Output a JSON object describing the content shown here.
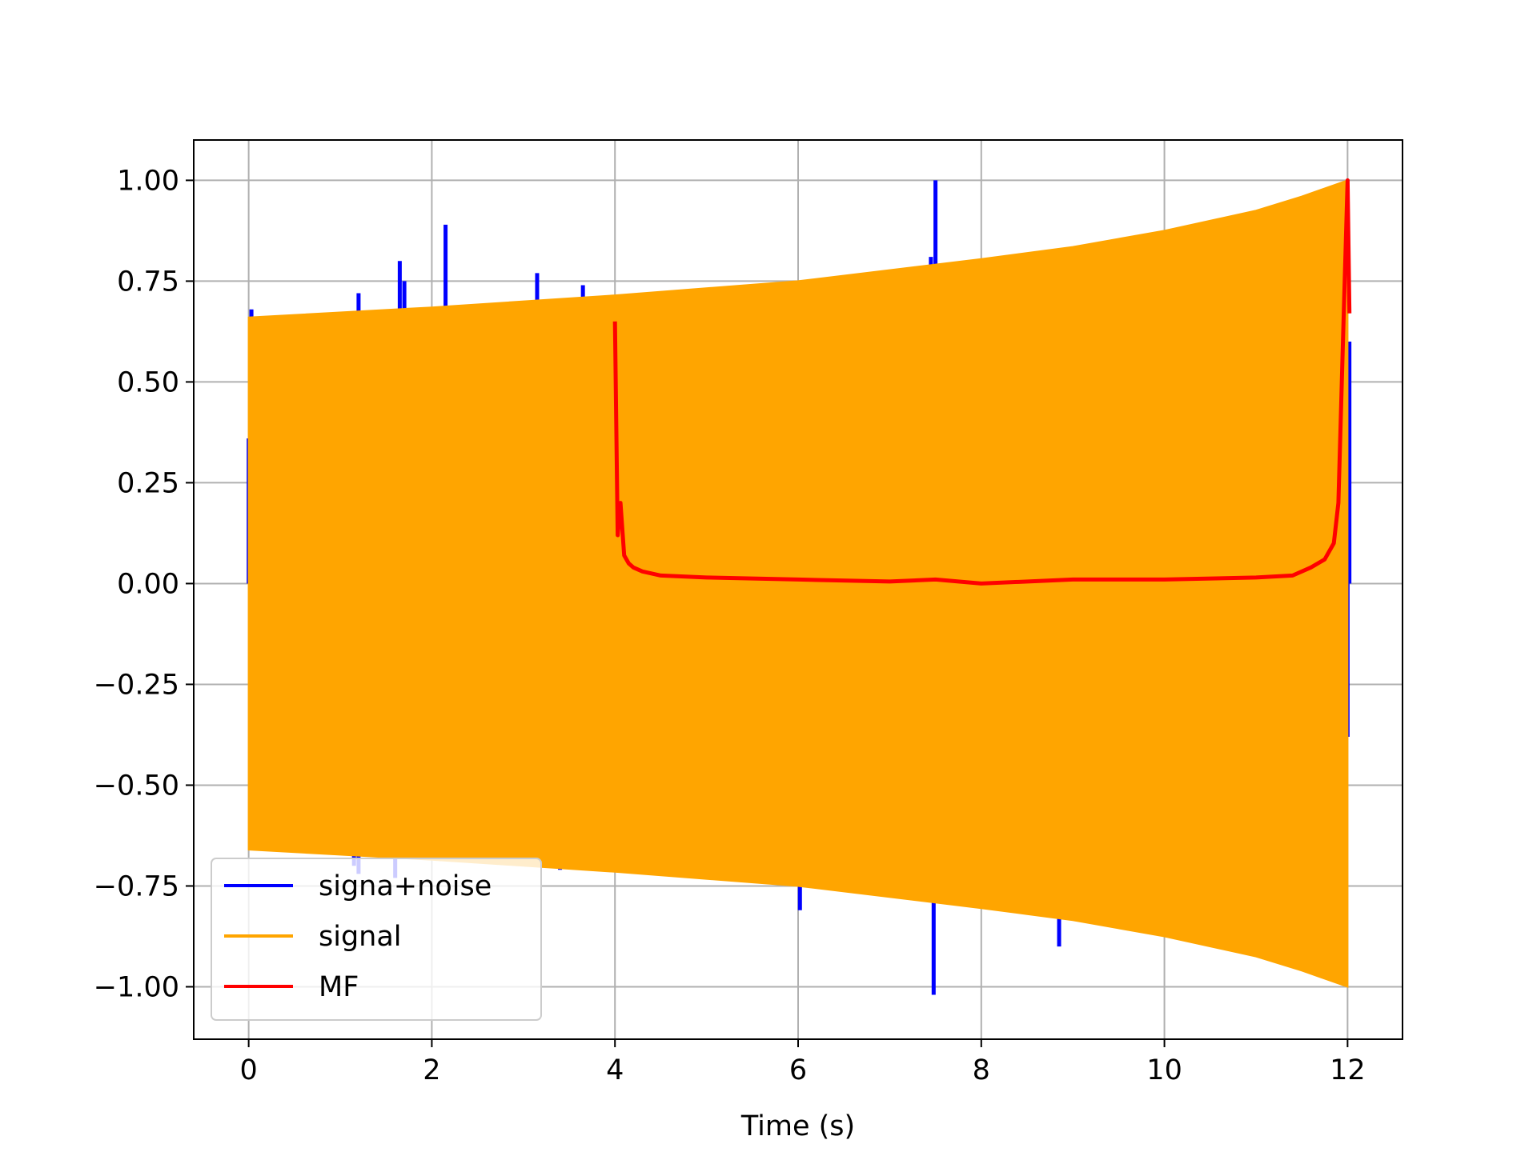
{
  "chart_data": {
    "type": "line",
    "title": "",
    "xlabel": "Time (s)",
    "ylabel": "",
    "xlim": [
      -0.6,
      12.6
    ],
    "ylim": [
      -1.13,
      1.1
    ],
    "grid": true,
    "legend_position": "lower-left",
    "x_ticks": [
      0,
      2,
      4,
      6,
      8,
      10,
      12
    ],
    "x_tick_labels": [
      "0",
      "2",
      "4",
      "6",
      "8",
      "10",
      "12"
    ],
    "y_ticks": [
      1.0,
      0.75,
      0.5,
      0.25,
      0.0,
      -0.25,
      -0.5,
      -0.75,
      -1.0
    ],
    "y_tick_labels": [
      "1.00",
      "0.75",
      "0.50",
      "0.25",
      "0.00",
      "−0.25",
      "−0.50",
      "−0.75",
      "−1.00"
    ],
    "series": [
      {
        "name": "signa+noise",
        "color": "#0000ff",
        "style": "spikes",
        "spikes": [
          {
            "x": 0.0,
            "y": 0.36
          },
          {
            "x": 0.03,
            "y": 0.68
          },
          {
            "x": 1.2,
            "y": 0.72
          },
          {
            "x": 1.65,
            "y": 0.8
          },
          {
            "x": 1.7,
            "y": 0.75
          },
          {
            "x": 2.15,
            "y": 0.89
          },
          {
            "x": 3.15,
            "y": 0.77
          },
          {
            "x": 3.65,
            "y": 0.74
          },
          {
            "x": 7.45,
            "y": 0.81
          },
          {
            "x": 7.5,
            "y": 1.0
          },
          {
            "x": 1.15,
            "y": -0.7
          },
          {
            "x": 1.2,
            "y": -0.72
          },
          {
            "x": 1.6,
            "y": -0.73
          },
          {
            "x": 3.4,
            "y": -0.71
          },
          {
            "x": 3.6,
            "y": -0.71
          },
          {
            "x": 6.02,
            "y": -0.81
          },
          {
            "x": 7.48,
            "y": -1.02
          },
          {
            "x": 8.85,
            "y": -0.9
          },
          {
            "x": 12.0,
            "y": -0.38
          },
          {
            "x": 12.02,
            "y": 0.6
          }
        ]
      },
      {
        "name": "signal",
        "color": "#ffa500",
        "style": "envelope",
        "x": [
          0,
          2,
          4,
          6,
          8,
          9,
          10,
          11,
          11.5,
          12
        ],
        "upper": [
          0.66,
          0.685,
          0.715,
          0.75,
          0.805,
          0.835,
          0.875,
          0.925,
          0.96,
          1.0
        ],
        "lower": [
          -0.66,
          -0.685,
          -0.715,
          -0.75,
          -0.805,
          -0.835,
          -0.875,
          -0.925,
          -0.96,
          -1.0
        ]
      },
      {
        "name": "MF",
        "color": "#ff0000",
        "style": "line",
        "x": [
          4.0,
          4.03,
          4.06,
          4.1,
          4.15,
          4.2,
          4.3,
          4.5,
          5.0,
          6.0,
          7.0,
          7.5,
          8.0,
          9.0,
          10.0,
          11.0,
          11.4,
          11.6,
          11.75,
          11.85,
          11.9,
          11.95,
          12.0,
          12.02
        ],
        "y": [
          0.65,
          0.12,
          0.2,
          0.07,
          0.05,
          0.04,
          0.03,
          0.02,
          0.015,
          0.01,
          0.005,
          0.01,
          0.0,
          0.01,
          0.01,
          0.015,
          0.02,
          0.04,
          0.06,
          0.1,
          0.2,
          0.6,
          1.0,
          0.67
        ]
      }
    ]
  }
}
